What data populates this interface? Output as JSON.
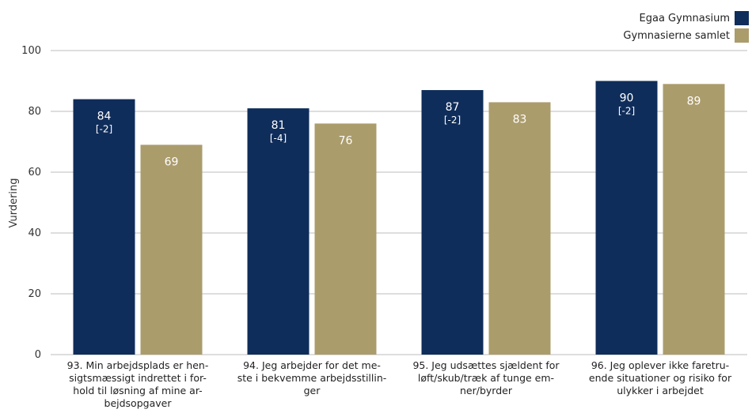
{
  "chart_data": {
    "type": "bar",
    "ylabel": "Vurdering",
    "ylim": [
      0,
      100
    ],
    "yticks": [
      0,
      20,
      40,
      60,
      80,
      100
    ],
    "grid": "horizontal",
    "legend_position": "top-right",
    "categories": [
      [
        "93. Min arbejdsplads er hen-",
        "sigtsmæssigt indrettet i for-",
        "hold til løsning af mine ar-",
        "bejdsopgaver"
      ],
      [
        "94. Jeg arbejder for det me-",
        "ste i bekvemme arbejdsstillin-",
        "ger"
      ],
      [
        "95. Jeg udsættes sjældent for",
        "løft/skub/træk af tunge em-",
        "ner/byrder"
      ],
      [
        "96. Jeg oplever ikke faretru-",
        "ende situationer og risiko for",
        "ulykker i arbejdet"
      ]
    ],
    "series": [
      {
        "name": "Egaa Gymnasium",
        "color": "#0f2d5a",
        "values": [
          84,
          81,
          87,
          90
        ],
        "labels": [
          "84",
          "81",
          "87",
          "90"
        ],
        "sublabels": [
          "[-2]",
          "[-4]",
          "[-2]",
          "[-2]"
        ]
      },
      {
        "name": "Gymnasierne samlet",
        "color": "#ab9c6c",
        "values": [
          69,
          76,
          83,
          89
        ],
        "labels": [
          "69",
          "76",
          "83",
          "89"
        ]
      }
    ]
  }
}
